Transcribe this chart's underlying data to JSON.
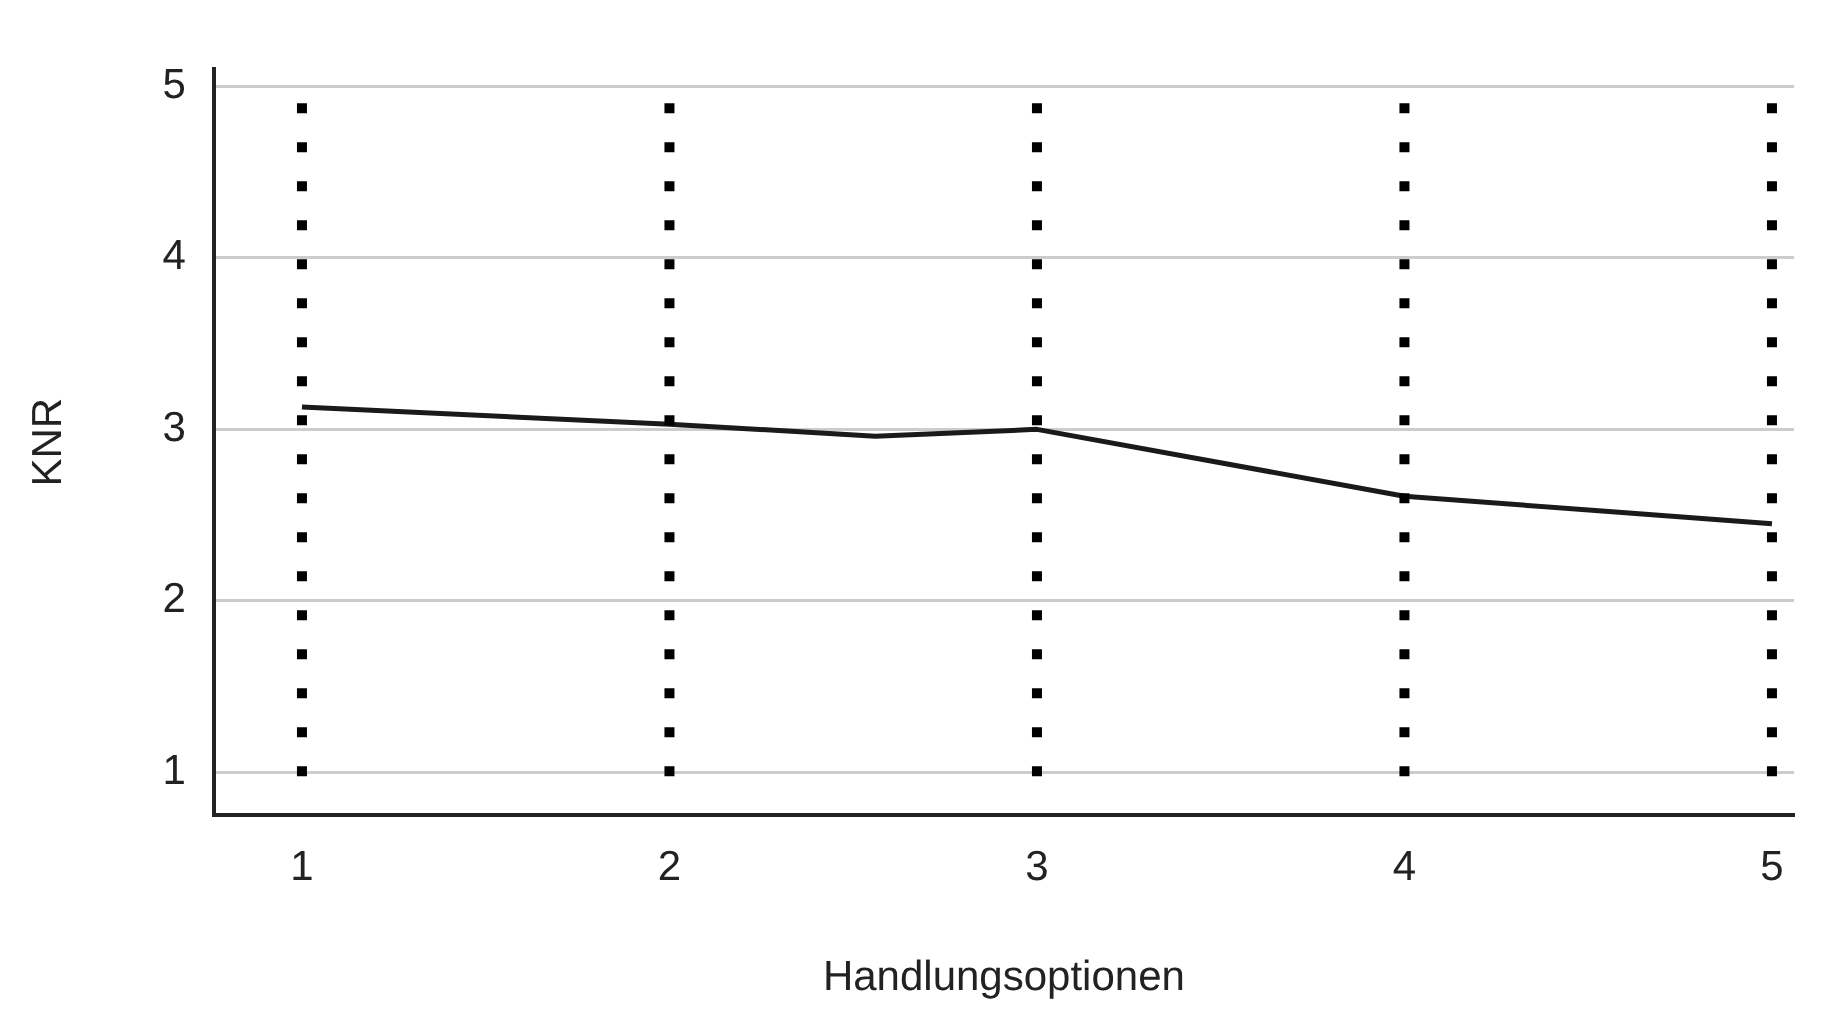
{
  "chart_data": {
    "type": "line",
    "xlabel": "Handlungsoptionen",
    "ylabel": "KNR",
    "xlim": [
      0.76,
      5.06
    ],
    "xticks": [
      1,
      2,
      3,
      4,
      5
    ],
    "ylim": [
      0.75,
      5.1
    ],
    "yticks": [
      1,
      2,
      3,
      4,
      5
    ],
    "grid": "y",
    "series": [
      {
        "color": "#1a1a1a",
        "x": [
          1,
          2,
          2.56,
          3,
          4,
          5
        ],
        "values": [
          3.13,
          3.03,
          2.96,
          3.0,
          2.61,
          2.45
        ]
      }
    ],
    "ref_lines": [
      {
        "axis": "x",
        "value": 1,
        "color": "#000000",
        "line_style": "dotted"
      },
      {
        "axis": "x",
        "value": 2,
        "color": "#000000",
        "line_style": "dotted"
      },
      {
        "axis": "x",
        "value": 3,
        "color": "#000000",
        "line_style": "dotted"
      },
      {
        "axis": "x",
        "value": 4,
        "color": "#000000",
        "line_style": "dotted"
      },
      {
        "axis": "x",
        "value": 5,
        "color": "#000000",
        "line_style": "dotted"
      }
    ]
  }
}
